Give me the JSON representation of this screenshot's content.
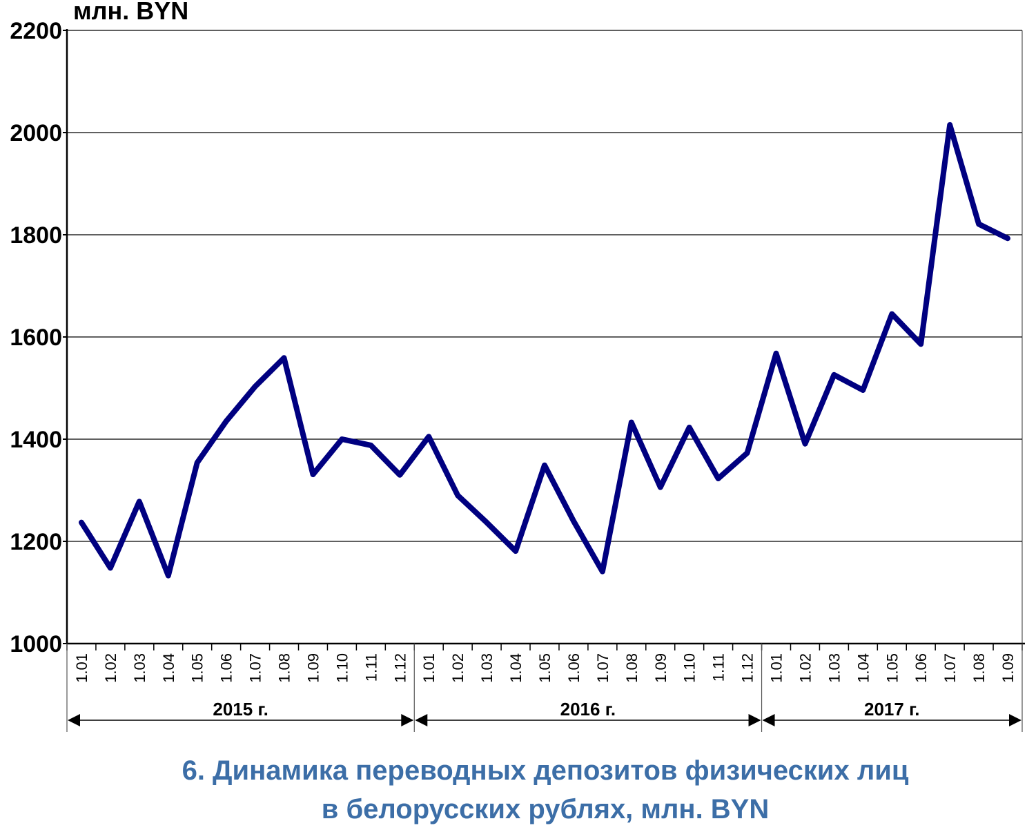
{
  "unit_label": "млн. BYN",
  "caption": {
    "line1": "6. Динамика переводных депозитов физических лиц",
    "line2": "в белорусских рублях, млн. BYN"
  },
  "colors": {
    "series": "#000080",
    "grid": "#000000",
    "caption": "#3c6ea7"
  },
  "chart_data": {
    "type": "line",
    "title": "",
    "xlabel": "",
    "ylabel": "млн. BYN",
    "ylim": [
      1000,
      2200
    ],
    "yticks": [
      1000,
      1200,
      1400,
      1600,
      1800,
      2000,
      2200
    ],
    "grid": true,
    "legend": "none",
    "categories": [
      "1.01",
      "1.02",
      "1.03",
      "1.04",
      "1.05",
      "1.06",
      "1.07",
      "1.08",
      "1.09",
      "1.10",
      "1.11",
      "1.12",
      "1.01",
      "1.02",
      "1.03",
      "1.04",
      "1.05",
      "1.06",
      "1.07",
      "1.08",
      "1.09",
      "1.10",
      "1.11",
      "1.12",
      "1.01",
      "1.02",
      "1.03",
      "1.04",
      "1.05",
      "1.06",
      "1.07",
      "1.08",
      "1.09"
    ],
    "groups": [
      {
        "label": "2015 г.",
        "count": 12
      },
      {
        "label": "2016 г.",
        "count": 12
      },
      {
        "label": "2017 г.",
        "count": 9
      }
    ],
    "series": [
      {
        "values": [
          1237,
          1148,
          1278,
          1133,
          1354,
          1435,
          1503,
          1559,
          1331,
          1400,
          1388,
          1330,
          1405,
          1290,
          1237,
          1181,
          1349,
          1240,
          1141,
          1433,
          1306,
          1423,
          1323,
          1373,
          1568,
          1391,
          1526,
          1496,
          1645,
          1586,
          2015,
          1821,
          1793
        ]
      }
    ]
  }
}
